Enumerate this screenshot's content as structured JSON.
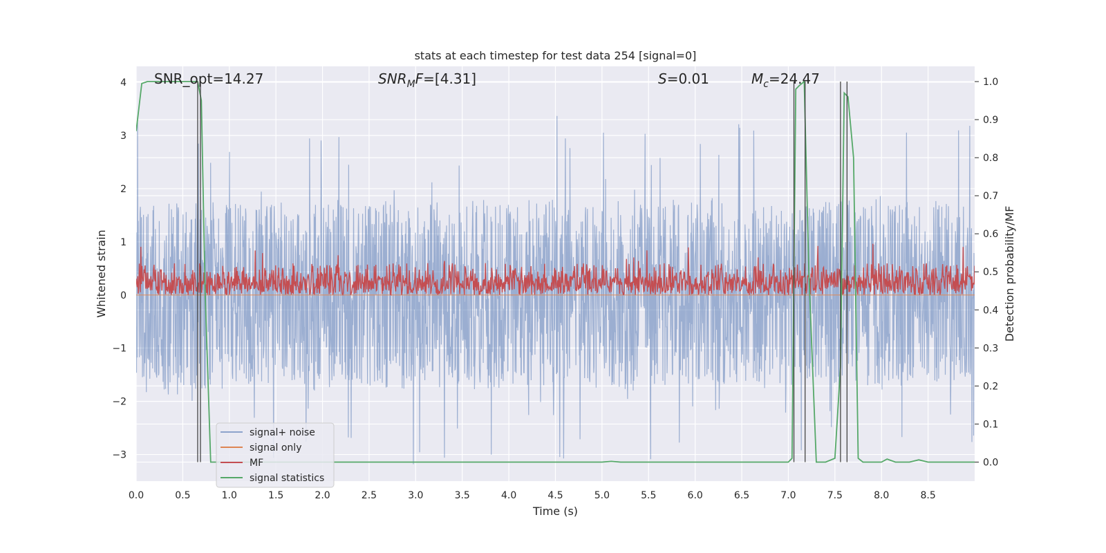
{
  "chart_data": {
    "type": "line",
    "title": "stats at each timestep for test data 254 [signal=0]",
    "xlabel": "Time (s)",
    "ylabel": "Whitened strain",
    "y2label": "Detection probability/MF",
    "xlim": [
      0,
      9
    ],
    "ylim": [
      -3.5,
      4.3
    ],
    "y2lim": [
      -0.05,
      1.04
    ],
    "xticks": [
      "0.0",
      "0.5",
      "1.0",
      "1.5",
      "2.0",
      "2.5",
      "3.0",
      "3.5",
      "4.0",
      "4.5",
      "5.0",
      "5.5",
      "6.0",
      "6.5",
      "7.0",
      "7.5",
      "8.0",
      "8.5"
    ],
    "yticks": [
      "−3",
      "−2",
      "−1",
      "0",
      "1",
      "2",
      "3",
      "4"
    ],
    "y2ticks": [
      "0.0",
      "0.1",
      "0.2",
      "0.3",
      "0.4",
      "0.5",
      "0.6",
      "0.7",
      "0.8",
      "0.9",
      "1.0"
    ],
    "grid": true,
    "legend_position": "lower-left",
    "annotations": {
      "snr_opt": "SNR_opt=14.27",
      "snr_mf_italic": "SNR",
      "snr_mf_sub": "M",
      "snr_mf_italic2": "F",
      "snr_mf_rest": "=[4.31]",
      "s_italic": "S",
      "s_rest": "=0.01",
      "mc_italic": "M",
      "mc_sub": "c",
      "mc_rest": "=24.47"
    },
    "series": [
      {
        "name": "signal+ noise",
        "color": "#4c72b0",
        "axis": "left",
        "envelope_upper_typical": 1.8,
        "envelope_lower_typical": -1.7,
        "peak_max": 3.4,
        "peak_min": -3.2
      },
      {
        "name": "signal only",
        "color": "#dd8452",
        "axis": "left",
        "constant": 0.0
      },
      {
        "name": "MF",
        "color": "#c44e52",
        "axis": "left",
        "band": [
          0.0,
          0.6
        ],
        "peak": 1.0
      },
      {
        "name": "signal statistics",
        "color": "#55a868",
        "axis": "right",
        "x": [
          0.0,
          0.06,
          0.12,
          0.2,
          0.3,
          0.4,
          0.5,
          0.6,
          0.66,
          0.7,
          0.74,
          0.8,
          0.9,
          5.0,
          5.1,
          5.2,
          7.0,
          7.04,
          7.08,
          7.12,
          7.17,
          7.22,
          7.3,
          7.4,
          7.5,
          7.56,
          7.6,
          7.64,
          7.7,
          7.75,
          7.8,
          7.9,
          8.0,
          8.06,
          8.15,
          8.3,
          8.4,
          8.5,
          9.0
        ],
        "values": [
          0.87,
          0.995,
          1.0,
          1.0,
          1.0,
          1.0,
          1.0,
          1.0,
          1.0,
          0.95,
          0.45,
          0.0,
          0.0,
          0.0,
          0.002,
          0.0,
          0.0,
          0.01,
          0.98,
          0.99,
          1.0,
          0.5,
          0.0,
          0.0,
          0.01,
          0.25,
          0.97,
          0.96,
          0.8,
          0.01,
          0.0,
          0.0,
          0.0,
          0.008,
          0.0,
          0.0,
          0.006,
          0.0,
          0.0
        ]
      }
    ],
    "vertical_lines_x": [
      0.66,
      0.69,
      7.06,
      7.18,
      7.56,
      7.63
    ]
  }
}
